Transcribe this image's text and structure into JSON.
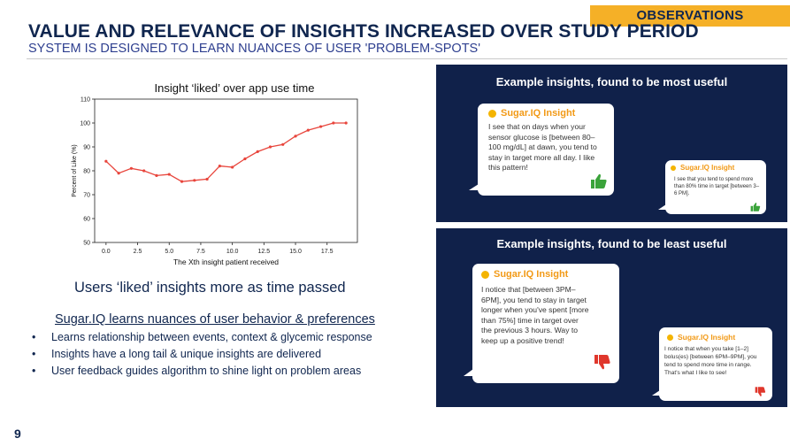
{
  "header": {
    "tag": "OBSERVATIONS",
    "title": "VALUE AND RELEVANCE OF INSIGHTS INCREASED OVER STUDY PERIOD",
    "subtitle": "SYSTEM IS DESIGNED TO LEARN NUANCES OF USER 'PROBLEM-SPOTS'"
  },
  "chart_data": {
    "type": "line",
    "title": "Insight ‘liked’ over app use time",
    "xlabel": "The Xth insight patient received",
    "ylabel": "Percent of Like (%)",
    "xlim": [
      -0.9,
      19.9
    ],
    "ylim": [
      50,
      110
    ],
    "xticks": [
      "0.0",
      "2.5",
      "5.0",
      "7.5",
      "10.0",
      "12.5",
      "15.0",
      "17.5"
    ],
    "xtick_values": [
      0,
      2.5,
      5,
      7.5,
      10,
      12.5,
      15,
      17.5
    ],
    "yticks": [
      50,
      60,
      70,
      80,
      90,
      100,
      110
    ],
    "color": "#e8453c",
    "x": [
      0,
      1,
      2,
      3,
      4,
      5,
      6,
      7,
      8,
      9,
      10,
      11,
      12,
      13,
      14,
      15,
      16,
      17,
      18,
      19
    ],
    "y": [
      84,
      79,
      81,
      80,
      78,
      78.5,
      75.5,
      76,
      76.5,
      82,
      81.5,
      85,
      88,
      90,
      91,
      94.5,
      97,
      98.5,
      100,
      100
    ]
  },
  "left": {
    "main_statement": "Users ‘liked’ insights more as time passed",
    "subheading": "Sugar.IQ learns nuances of user behavior & preferences",
    "bullets": [
      "Learns relationship between events, context & glycemic response",
      "Insights have a long tail & unique insights are delivered",
      "User feedback guides algorithm to shine light on problem areas"
    ]
  },
  "page_number": "9",
  "panels": {
    "top": {
      "heading": "Example insights, found to be most useful",
      "cards": [
        {
          "brand": "Sugar.IQ Insight",
          "text": "I see that on days when your sensor glucose is [between 80–100 mg/dL] at dawn, you tend to stay in target more all day. I like this pattern!",
          "feedback_icon": "thumbs-up-icon"
        },
        {
          "brand": "Sugar.IQ Insight",
          "text": "I see that you tend to spend more than 80% time in target [between 3–6 PM].",
          "feedback_icon": "thumbs-up-icon"
        }
      ]
    },
    "bottom": {
      "heading": "Example insights, found to be least useful",
      "cards": [
        {
          "brand": "Sugar.IQ Insight",
          "text": "I notice that [between 3PM–6PM], you tend to stay in target longer when you've spent [more than 75%] time in target over the previous 3 hours. Way to keep up a positive trend!",
          "feedback_icon": "thumbs-down-icon"
        },
        {
          "brand": "Sugar.IQ Insight",
          "text": "I notice that when you take [1–2] bolus(es) [between 6PM–9PM], you tend to spend more time in range. That's what I like to see!",
          "feedback_icon": "thumbs-down-icon"
        }
      ]
    }
  },
  "colors": {
    "navy": "#10214a",
    "accent": "#f5b027",
    "brand_orange": "#f29a17",
    "thumbs_up": "#3aa33a",
    "thumbs_down": "#e0372c"
  }
}
